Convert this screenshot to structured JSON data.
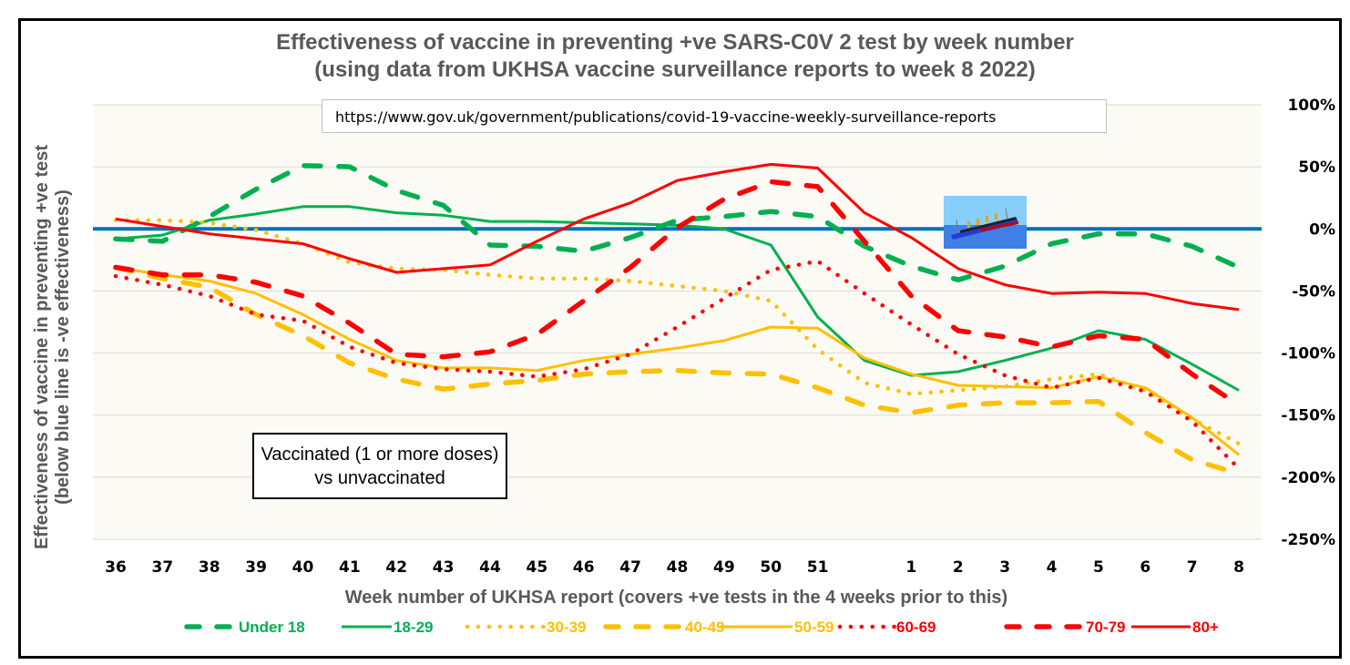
{
  "chart_data": {
    "type": "line",
    "title": "Effectiveness of vaccine in preventing +ve SARS-C0V 2 test by week number",
    "subtitle": "(using data from UKHSA vaccine surveillance reports to week 8 2022)",
    "xlabel": "Week number of UKHSA report (covers +ve tests in the 4 weeks prior to this)",
    "ylabel": "Effectiveness of vaccine in preventing +ve test",
    "ylabel2": "(below blue line is -ve effectiveness)",
    "categories": [
      "36",
      "37",
      "38",
      "39",
      "40",
      "41",
      "42",
      "43",
      "44",
      "45",
      "46",
      "47",
      "48",
      "49",
      "50",
      "51",
      "",
      "1",
      "2",
      "3",
      "4",
      "5",
      "6",
      "7",
      "8"
    ],
    "ylim": [
      -250,
      100
    ],
    "yticks": [
      100,
      50,
      0,
      -50,
      -100,
      -150,
      -200,
      -250
    ],
    "ytick_labels": [
      "100%",
      "50%",
      "0%",
      "-50%",
      "-100%",
      "-150%",
      "-200%",
      "-250%"
    ],
    "y_axis_side": "right",
    "grid": true,
    "reference_line": {
      "value": 0,
      "color": "#0070C0"
    },
    "legend_position": "bottom",
    "series": [
      {
        "name": "Under 18",
        "color": "#00B050",
        "style": "dashed",
        "values": [
          -8,
          -10,
          10,
          32,
          51,
          50,
          31,
          19,
          -13,
          -14,
          -18,
          -7,
          7,
          10,
          14,
          10,
          -14,
          -30,
          -41,
          -30,
          -12,
          -4,
          -4,
          -14,
          -31
        ]
      },
      {
        "name": "18-29",
        "color": "#00B050",
        "style": "solid",
        "values": [
          -8,
          -5,
          7,
          12,
          18,
          18,
          13,
          11,
          6,
          6,
          5,
          4,
          3,
          0,
          -13,
          -71,
          -106,
          -118,
          -115,
          -106,
          -96,
          -82,
          -89,
          -109,
          -130
        ]
      },
      {
        "name": "30-39",
        "color": "#FFC000",
        "style": "dotted",
        "values": [
          7,
          7,
          5,
          -1,
          -12,
          -27,
          -32,
          -33,
          -37,
          -40,
          -40,
          -42,
          -46,
          -50,
          -58,
          -97,
          -124,
          -133,
          -130,
          -127,
          -121,
          -117,
          -130,
          -153,
          -173
        ]
      },
      {
        "name": "40-49",
        "color": "#FFC000",
        "style": "dashed",
        "values": [
          -31,
          -40,
          -47,
          -69,
          -86,
          -108,
          -121,
          -129,
          -125,
          -122,
          -117,
          -115,
          -114,
          -116,
          -117,
          -128,
          -142,
          -148,
          -142,
          -140,
          -140,
          -139,
          -164,
          -186,
          -197
        ]
      },
      {
        "name": "50-59",
        "color": "#FFC000",
        "style": "solid",
        "values": [
          -31,
          -37,
          -42,
          -52,
          -69,
          -89,
          -106,
          -112,
          -112,
          -114,
          -106,
          -101,
          -96,
          -90,
          -79,
          -80,
          -104,
          -117,
          -126,
          -127,
          -128,
          -119,
          -128,
          -152,
          -182
        ]
      },
      {
        "name": "60-69",
        "color": "#FF0000",
        "style": "dotted",
        "values": [
          -38,
          -45,
          -54,
          -69,
          -74,
          -95,
          -108,
          -113,
          -115,
          -119,
          -113,
          -101,
          -79,
          -56,
          -33,
          -26,
          -52,
          -77,
          -101,
          -118,
          -128,
          -120,
          -131,
          -155,
          -193
        ]
      },
      {
        "name": "70-79",
        "color": "#FF0000",
        "style": "dashed",
        "values": [
          -31,
          -37,
          -37,
          -43,
          -54,
          -76,
          -101,
          -103,
          -99,
          -85,
          -58,
          -31,
          1,
          24,
          38,
          34,
          -10,
          -54,
          -82,
          -87,
          -95,
          -86,
          -89,
          -117,
          -142
        ]
      },
      {
        "name": "80+",
        "color": "#FF0000",
        "style": "solid",
        "values": [
          8,
          2,
          -4,
          -8,
          -12,
          -24,
          -35,
          -32,
          -29,
          -10,
          8,
          21,
          39,
          46,
          52,
          49,
          13,
          -7,
          -32,
          -45,
          -52,
          -51,
          -52,
          -60,
          -65
        ]
      }
    ],
    "annotations": {
      "url": "https://www.gov.uk/government/publications/covid-19-vaccine-weekly-surveillance-reports",
      "note": "Vaccinated (1 or more doses) vs unvaccinated",
      "image": "sinking-ship-icon"
    }
  },
  "colors": {
    "plot_background": "#FCFAF5",
    "gridline": "#D9D9D9",
    "title_text": "#595959",
    "zero_line": "#0070C0"
  }
}
